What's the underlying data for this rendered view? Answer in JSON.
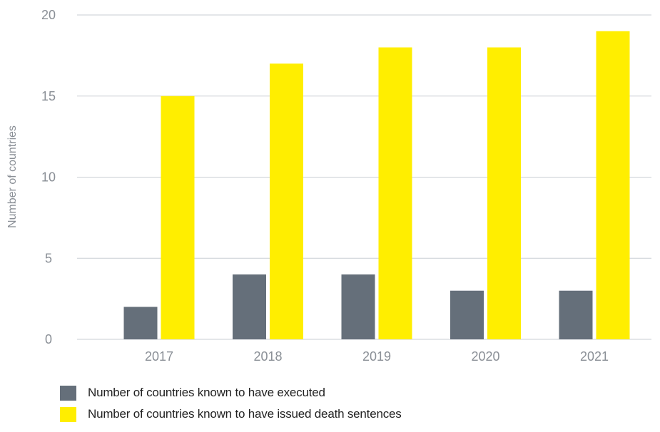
{
  "chart_data": {
    "type": "bar",
    "categories": [
      "2017",
      "2018",
      "2019",
      "2020",
      "2021"
    ],
    "series": [
      {
        "name": "Number of countries known to have executed",
        "values": [
          2,
          4,
          4,
          3,
          3
        ],
        "color": "#656f7a"
      },
      {
        "name": "Number of countries known to have issued death sentences",
        "values": [
          15,
          17,
          18,
          18,
          19
        ],
        "color": "#ffee00"
      }
    ],
    "title": "",
    "xlabel": "",
    "ylabel": "Number of countries",
    "ylim": [
      0,
      20
    ],
    "yticks": [
      0,
      5,
      10,
      15,
      20
    ],
    "grid": true,
    "legend_position": "bottom-left"
  }
}
